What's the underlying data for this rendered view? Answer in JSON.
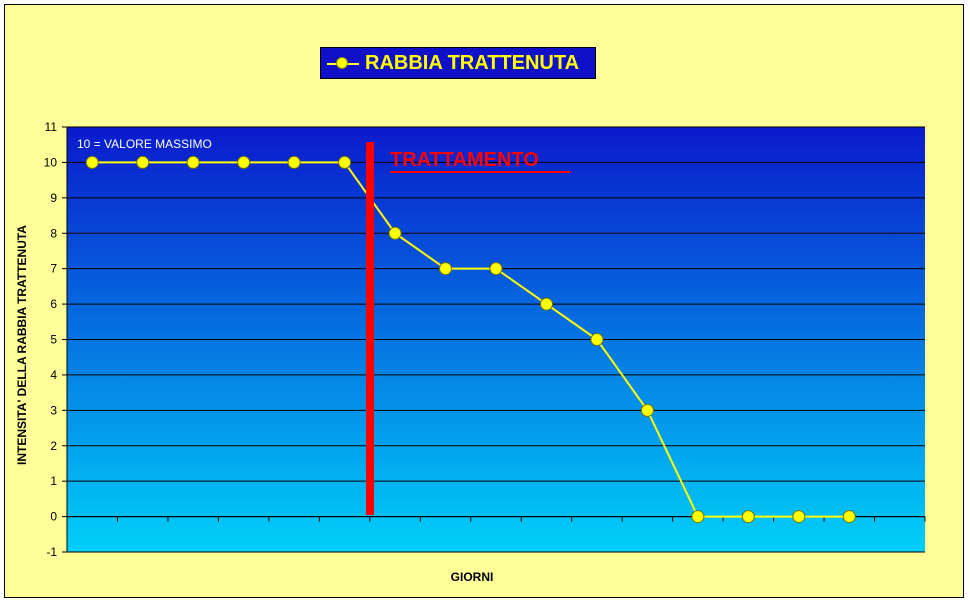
{
  "chart_data": {
    "type": "line",
    "title": "",
    "series": [
      {
        "name": "RABBIA TRATTENUTA",
        "color": "#ffff00",
        "values": [
          10,
          10,
          10,
          10,
          10,
          10,
          8,
          7,
          7,
          6,
          5,
          3,
          0,
          0,
          0,
          0
        ]
      }
    ],
    "xlabel": "GIORNI",
    "ylabel": "INTENSITA' DELLA RABBIA TRATTENUTA",
    "ylim": [
      -1,
      11
    ],
    "yticks": [
      -1,
      0,
      1,
      2,
      3,
      4,
      5,
      6,
      7,
      8,
      9,
      10,
      11
    ],
    "grid": true,
    "legend_position": "top-center",
    "annotations": {
      "max_note": "10 = VALORE MASSIMO",
      "treatment_label": "TRATTAMENTO",
      "treatment_color": "#ff0000"
    },
    "plot_gradient": [
      "#0a1acc",
      "#00d0f8"
    ]
  }
}
